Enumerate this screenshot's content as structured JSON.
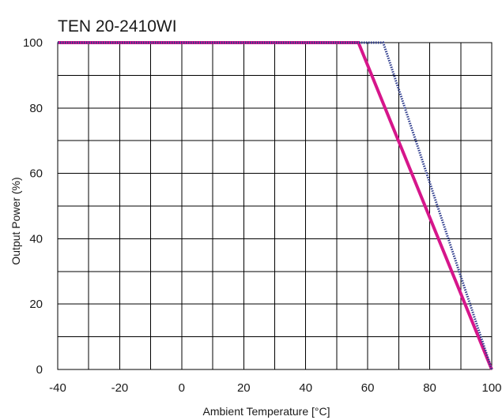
{
  "chart_data": {
    "type": "line",
    "title": "TEN 20-2410WI",
    "xlabel": "Ambient Temperature [°C]",
    "ylabel": "Output Power (%)",
    "xlim": [
      -40,
      100
    ],
    "ylim": [
      0,
      100
    ],
    "x_ticks": [
      "-40",
      "-20",
      "0",
      "20",
      "40",
      "60",
      "80",
      "100"
    ],
    "y_ticks": [
      "0",
      "20",
      "40",
      "60",
      "80",
      "100"
    ],
    "grid": true,
    "series": [
      {
        "color": "#d6168b",
        "style": "solid",
        "x": [
          -40,
          57,
          100
        ],
        "y": [
          100,
          100,
          0
        ]
      },
      {
        "color": "#2c3a8c",
        "style": "dotted",
        "x": [
          -40,
          65,
          100
        ],
        "y": [
          100,
          100,
          0
        ]
      }
    ]
  }
}
